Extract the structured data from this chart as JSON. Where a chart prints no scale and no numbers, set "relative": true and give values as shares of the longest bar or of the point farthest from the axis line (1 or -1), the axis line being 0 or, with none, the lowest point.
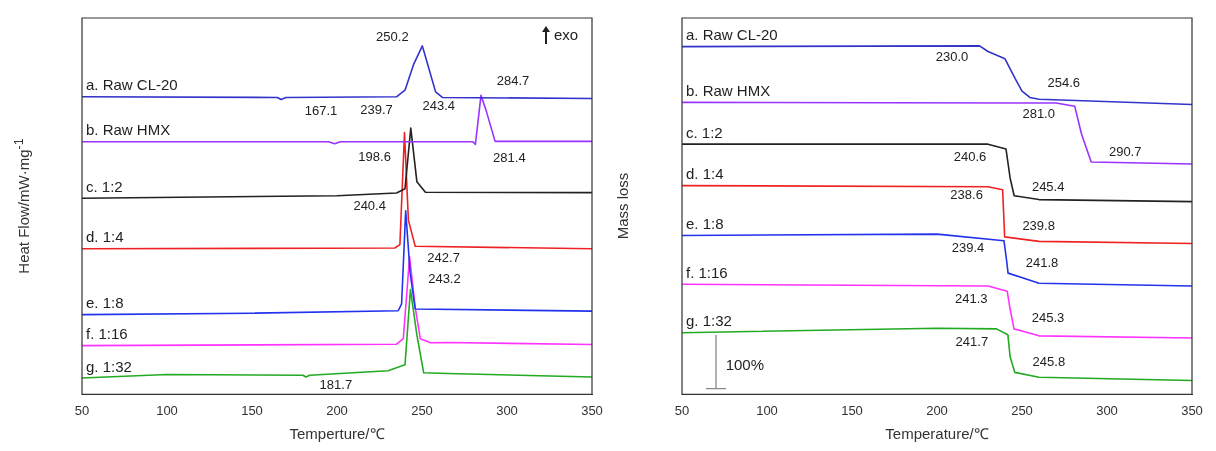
{
  "chart_data": [
    {
      "type": "line",
      "relative": true,
      "xlabel": "Temperture/℃",
      "ylabel": "Heat Flow/mW·mg$^{-1}$",
      "xlim": [
        50,
        350
      ],
      "xticks": [
        50,
        100,
        150,
        200,
        250,
        300,
        350
      ],
      "grid": false,
      "legend": false,
      "marker": "none",
      "line_style": "solid",
      "series": [
        {
          "name": "a. Raw CL-20",
          "color": "#3333cc",
          "x": [
            50,
            165,
            167.1,
            170,
            235,
            240,
            245,
            250.2,
            254,
            258,
            262,
            350
          ],
          "values": [
            0.854,
            0.852,
            0.846,
            0.852,
            0.854,
            0.873,
            0.946,
            1,
            0.936,
            0.868,
            0.852,
            0.849
          ]
        },
        {
          "name": "b. Raw HMX",
          "color": "#9933ff",
          "x": [
            50,
            195,
            198.6,
            202,
            280,
            281.4,
            284.7,
            288,
            293,
            350
          ],
          "values": [
            0.725,
            0.725,
            0.719,
            0.725,
            0.725,
            0.717,
            0.858,
            0.81,
            0.726,
            0.726
          ]
        },
        {
          "name": "c. 1:2",
          "color": "#222222",
          "x": [
            50,
            200,
            235,
            240,
            243.4,
            247,
            252,
            350
          ],
          "values": [
            0.563,
            0.57,
            0.578,
            0.59,
            0.764,
            0.61,
            0.58,
            0.579
          ]
        },
        {
          "name": "d. 1:4",
          "color": "#ee2222",
          "x": [
            50,
            234,
            237,
            239.7,
            242,
            246,
            350
          ],
          "values": [
            0.418,
            0.42,
            0.43,
            0.751,
            0.5,
            0.425,
            0.418
          ]
        },
        {
          "name": "e. 1:8",
          "color": "#2233ee",
          "x": [
            50,
            150,
            236,
            238,
            240.4,
            243,
            246,
            350
          ],
          "values": [
            0.229,
            0.233,
            0.24,
            0.26,
            0.527,
            0.35,
            0.245,
            0.239
          ]
        },
        {
          "name": "f. 1:16",
          "color": "#ff33ff",
          "x": [
            50,
            235,
            239,
            242.7,
            246,
            249,
            255,
            265,
            350
          ],
          "values": [
            0.14,
            0.144,
            0.16,
            0.395,
            0.25,
            0.16,
            0.148,
            0.149,
            0.143
          ]
        },
        {
          "name": "g. 1:32",
          "color": "#22aa22",
          "x": [
            50,
            100,
            180,
            181.7,
            184,
            230,
            240,
            243.2,
            247,
            251,
            265,
            350
          ],
          "values": [
            0.047,
            0.057,
            0.055,
            0.05,
            0.055,
            0.068,
            0.085,
            0.301,
            0.17,
            0.062,
            0.06,
            0.05
          ]
        }
      ],
      "annotations": [
        "exo",
        {
          "text": "250.2",
          "x": 250.2,
          "y": 1
        },
        {
          "text": "167.1",
          "x": 167.1,
          "y": 0.846
        },
        {
          "text": "284.7",
          "x": 284.7,
          "y": 0.858
        },
        {
          "text": "198.6",
          "x": 198.6,
          "y": 0.719
        },
        {
          "text": "281.4",
          "x": 281.4,
          "y": 0.717
        },
        {
          "text": "239.7",
          "x": 239.7,
          "y": 0.751
        },
        {
          "text": "243.4",
          "x": 243.4,
          "y": 0.764
        },
        {
          "text": "240.4",
          "x": 240.4,
          "y": 0.527
        },
        {
          "text": "242.7",
          "x": 242.7,
          "y": 0.395
        },
        {
          "text": "243.2",
          "x": 243.2,
          "y": 0.301
        },
        {
          "text": "181.7",
          "x": 181.7,
          "y": 0.05
        }
      ]
    },
    {
      "type": "line",
      "relative": true,
      "xlabel": "Temperature/℃",
      "ylabel": "Mass loss",
      "xlim": [
        50,
        350
      ],
      "xticks": [
        50,
        100,
        150,
        200,
        250,
        300,
        350
      ],
      "grid": false,
      "legend": false,
      "marker": "none",
      "line_style": "solid",
      "series": [
        {
          "name": "a. Raw CL-20",
          "color": "#3333cc",
          "x": [
            50,
            225,
            230,
            240,
            246,
            250,
            254.6,
            260,
            350
          ],
          "values": [
            0.998,
            1,
            0.984,
            0.963,
            0.906,
            0.87,
            0.852,
            0.847,
            0.832
          ]
        },
        {
          "name": "b. Raw HMX",
          "color": "#9933ff",
          "x": [
            50,
            270,
            281,
            285,
            290.7,
            350
          ],
          "values": [
            0.838,
            0.836,
            0.827,
            0.747,
            0.667,
            0.661
          ]
        },
        {
          "name": "c. 1:2",
          "color": "#222222",
          "x": [
            50,
            230,
            240.6,
            243,
            245.4,
            260,
            350
          ],
          "values": [
            0.718,
            0.718,
            0.704,
            0.621,
            0.57,
            0.559,
            0.553
          ]
        },
        {
          "name": "d. 1:4",
          "color": "#ee2222",
          "x": [
            50,
            230,
            238.6,
            239.2,
            239.8,
            260,
            350
          ],
          "values": [
            0.599,
            0.596,
            0.587,
            0.52,
            0.452,
            0.439,
            0.433
          ]
        },
        {
          "name": "e. 1:8",
          "color": "#2233ee",
          "x": [
            50,
            200,
            239.4,
            241,
            241.8,
            260,
            350
          ],
          "values": [
            0.456,
            0.46,
            0.441,
            0.382,
            0.348,
            0.319,
            0.311
          ]
        },
        {
          "name": "f. 1:16",
          "color": "#ff33ff",
          "x": [
            50,
            230,
            241.3,
            243,
            245.3,
            260,
            350
          ],
          "values": [
            0.316,
            0.311,
            0.296,
            0.245,
            0.188,
            0.168,
            0.162
          ]
        },
        {
          "name": "g. 1:32",
          "color": "#22aa22",
          "x": [
            50,
            200,
            235,
            241.7,
            243,
            245.8,
            260,
            350
          ],
          "values": [
            0.177,
            0.19,
            0.188,
            0.171,
            0.108,
            0.063,
            0.049,
            0.04
          ]
        }
      ],
      "annotations": [
        "100%",
        {
          "text": "230.0",
          "x": 230.0,
          "y": 0.984
        },
        {
          "text": "254.6",
          "x": 254.6,
          "y": 0.852
        },
        {
          "text": "281.0",
          "x": 281.0,
          "y": 0.827
        },
        {
          "text": "290.7",
          "x": 290.7,
          "y": 0.667
        },
        {
          "text": "240.6",
          "x": 240.6,
          "y": 0.704
        },
        {
          "text": "245.4",
          "x": 245.4,
          "y": 0.57
        },
        {
          "text": "238.6",
          "x": 238.6,
          "y": 0.587
        },
        {
          "text": "239.8",
          "x": 239.8,
          "y": 0.452
        },
        {
          "text": "239.4",
          "x": 239.4,
          "y": 0.441
        },
        {
          "text": "241.8",
          "x": 241.8,
          "y": 0.348
        },
        {
          "text": "241.3",
          "x": 241.3,
          "y": 0.296
        },
        {
          "text": "245.3",
          "x": 245.3,
          "y": 0.188
        },
        {
          "text": "241.7",
          "x": 241.7,
          "y": 0.171
        },
        {
          "text": "245.8",
          "x": 245.8,
          "y": 0.063
        }
      ]
    }
  ]
}
